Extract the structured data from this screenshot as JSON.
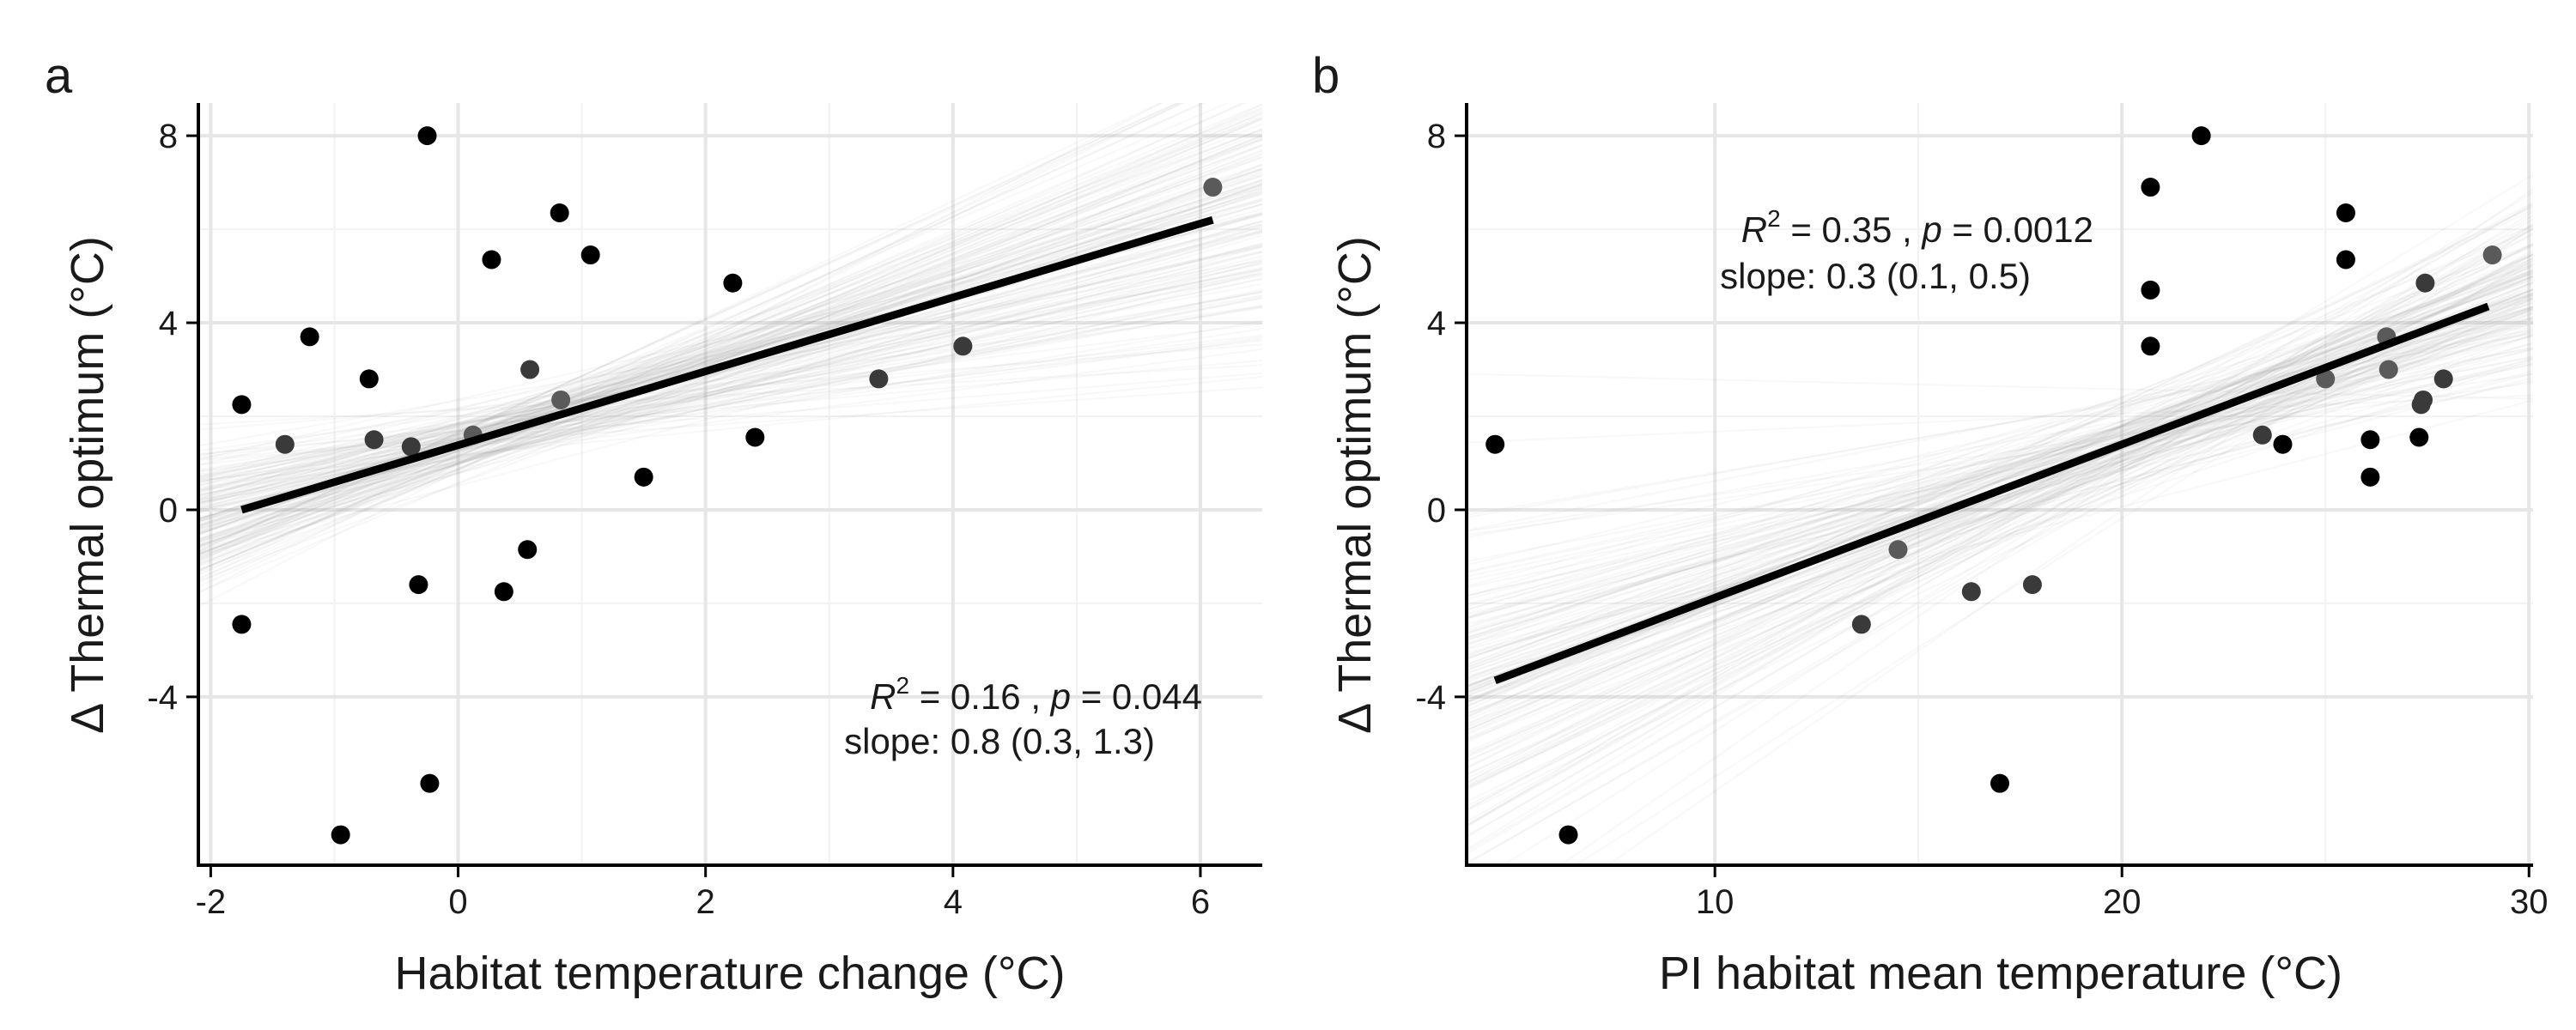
{
  "chart_data": [
    {
      "type": "scatter",
      "panel_label": "a",
      "xlabel": "Habitat temperature change (°C)",
      "ylabel": "Δ Thermal optimum (°C)",
      "xlim": [
        -2.1,
        6.5
      ],
      "ylim": [
        -7.6,
        8.7
      ],
      "xticks": [
        -2,
        0,
        2,
        4,
        6
      ],
      "xtick_labels": [
        "-2",
        "0",
        "2",
        "4",
        "6"
      ],
      "yticks": [
        -4,
        0,
        4,
        8
      ],
      "ytick_labels": [
        "-4",
        "0",
        "4",
        "8"
      ],
      "grid": true,
      "fit_line": {
        "x": [
          -1.75,
          6.1
        ],
        "y": [
          0.0,
          6.2
        ]
      },
      "annotation": {
        "r2_symbol": "R",
        "r2_exp": "2",
        "r2_value": " = 0.16 , ",
        "p_symbol": "p",
        "p_value": " = 0.044",
        "slope_text": "slope: 0.8 (0.3, 1.3)"
      },
      "points": [
        {
          "x": -1.75,
          "y": 2.25,
          "shade": "#000000"
        },
        {
          "x": -1.75,
          "y": -2.45,
          "shade": "#000000"
        },
        {
          "x": -1.4,
          "y": 1.4,
          "shade": "#3a3a3a"
        },
        {
          "x": -1.2,
          "y": 3.7,
          "shade": "#000000"
        },
        {
          "x": -0.95,
          "y": -6.95,
          "shade": "#000000"
        },
        {
          "x": -0.72,
          "y": 2.8,
          "shade": "#000000"
        },
        {
          "x": -0.68,
          "y": 1.5,
          "shade": "#3a3a3a"
        },
        {
          "x": -0.38,
          "y": 1.35,
          "shade": "#3a3a3a"
        },
        {
          "x": -0.32,
          "y": -1.6,
          "shade": "#000000"
        },
        {
          "x": -0.25,
          "y": 8.0,
          "shade": "#000000"
        },
        {
          "x": -0.23,
          "y": -5.85,
          "shade": "#000000"
        },
        {
          "x": 0.12,
          "y": 1.6,
          "shade": "#5a5a5a"
        },
        {
          "x": 0.27,
          "y": 5.35,
          "shade": "#000000"
        },
        {
          "x": 0.37,
          "y": -1.75,
          "shade": "#000000"
        },
        {
          "x": 0.56,
          "y": -0.85,
          "shade": "#000000"
        },
        {
          "x": 0.58,
          "y": 3.0,
          "shade": "#3a3a3a"
        },
        {
          "x": 0.82,
          "y": 6.35,
          "shade": "#000000"
        },
        {
          "x": 0.83,
          "y": 2.35,
          "shade": "#5a5a5a"
        },
        {
          "x": 1.07,
          "y": 5.45,
          "shade": "#000000"
        },
        {
          "x": 1.5,
          "y": 0.7,
          "shade": "#000000"
        },
        {
          "x": 2.22,
          "y": 4.85,
          "shade": "#000000"
        },
        {
          "x": 2.4,
          "y": 1.55,
          "shade": "#000000"
        },
        {
          "x": 3.4,
          "y": 2.8,
          "shade": "#3a3a3a"
        },
        {
          "x": 4.08,
          "y": 3.5,
          "shade": "#3a3a3a"
        },
        {
          "x": 6.1,
          "y": 6.9,
          "shade": "#5a5a5a"
        }
      ]
    },
    {
      "type": "scatter",
      "panel_label": "b",
      "xlabel": "PI habitat mean temperature (°C)",
      "ylabel": "Δ Thermal optimum (°C)",
      "xlim": [
        3.9,
        30.1
      ],
      "ylim": [
        -7.6,
        8.7
      ],
      "xticks": [
        10,
        20,
        30
      ],
      "xtick_labels": [
        "10",
        "20",
        "30"
      ],
      "yticks": [
        -4,
        0,
        4,
        8
      ],
      "ytick_labels": [
        "-4",
        "0",
        "4",
        "8"
      ],
      "grid": true,
      "fit_line": {
        "x": [
          4.6,
          29.0
        ],
        "y": [
          -3.65,
          4.35
        ]
      },
      "annotation": {
        "r2_symbol": "R",
        "r2_exp": "2",
        "r2_value": " = 0.35 , ",
        "p_symbol": "p",
        "p_value": " = 0.0012",
        "slope_text": "slope: 0.3 (0.1, 0.5)"
      },
      "points": [
        {
          "x": 4.6,
          "y": 1.4,
          "shade": "#000000"
        },
        {
          "x": 6.4,
          "y": -6.95,
          "shade": "#000000"
        },
        {
          "x": 13.6,
          "y": -2.45,
          "shade": "#3a3a3a"
        },
        {
          "x": 14.5,
          "y": -0.85,
          "shade": "#5a5a5a"
        },
        {
          "x": 16.3,
          "y": -1.75,
          "shade": "#3a3a3a"
        },
        {
          "x": 17.0,
          "y": -5.85,
          "shade": "#000000"
        },
        {
          "x": 17.8,
          "y": -1.6,
          "shade": "#3a3a3a"
        },
        {
          "x": 20.7,
          "y": 6.9,
          "shade": "#000000"
        },
        {
          "x": 20.7,
          "y": 4.7,
          "shade": "#000000"
        },
        {
          "x": 20.7,
          "y": 3.5,
          "shade": "#000000"
        },
        {
          "x": 21.95,
          "y": 8.0,
          "shade": "#000000"
        },
        {
          "x": 23.45,
          "y": 1.6,
          "shade": "#3a3a3a"
        },
        {
          "x": 23.95,
          "y": 1.4,
          "shade": "#000000"
        },
        {
          "x": 25.0,
          "y": 2.8,
          "shade": "#5a5a5a"
        },
        {
          "x": 25.5,
          "y": 6.35,
          "shade": "#000000"
        },
        {
          "x": 25.5,
          "y": 5.35,
          "shade": "#000000"
        },
        {
          "x": 26.1,
          "y": 1.5,
          "shade": "#000000"
        },
        {
          "x": 26.1,
          "y": 0.7,
          "shade": "#000000"
        },
        {
          "x": 26.5,
          "y": 3.7,
          "shade": "#5a5a5a"
        },
        {
          "x": 26.55,
          "y": 3.0,
          "shade": "#5a5a5a"
        },
        {
          "x": 27.35,
          "y": 2.25,
          "shade": "#3a3a3a"
        },
        {
          "x": 27.4,
          "y": 2.35,
          "shade": "#3a3a3a"
        },
        {
          "x": 27.3,
          "y": 1.55,
          "shade": "#000000"
        },
        {
          "x": 27.45,
          "y": 4.85,
          "shade": "#3a3a3a"
        },
        {
          "x": 27.9,
          "y": 2.8,
          "shade": "#3a3a3a"
        },
        {
          "x": 29.1,
          "y": 5.45,
          "shade": "#5a5a5a"
        }
      ]
    }
  ]
}
